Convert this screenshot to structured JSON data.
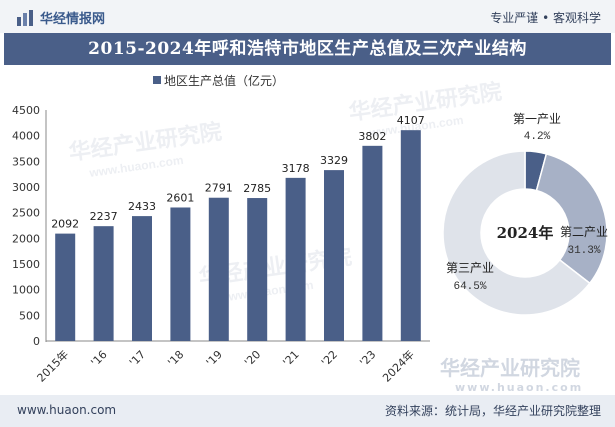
{
  "header": {
    "brand": "华经情报网",
    "slogan": "专业严谨 • 客观科学"
  },
  "title": "2015-2024年呼和浩特市地区生产总值及三次产业结构",
  "footer": {
    "site": "www.huaon.com",
    "source": "资料来源：统计局，华经产业研究院整理"
  },
  "watermark": {
    "text_cn": "华经产业研究院",
    "text_en": "www.huaon.com"
  },
  "colors": {
    "bar": "#4a5f88",
    "title_bg": "#4a5f88",
    "pie_primary": "#4a5f88",
    "pie_secondary": "#a7b1c6",
    "pie_tertiary": "#dfe3ea"
  },
  "chart_data": [
    {
      "type": "bar",
      "legend": "地区生产总值（亿元）",
      "categories": [
        "2015年",
        "'16",
        "'17",
        "'18",
        "'19",
        "'20",
        "'21",
        "'22",
        "'23",
        "2024年"
      ],
      "values": [
        2092,
        2237,
        2433,
        2601,
        2791,
        2785,
        3178,
        3329,
        3802,
        4107
      ],
      "ylim": [
        0,
        4500
      ],
      "yticks": [
        "0",
        "500",
        "1000",
        "1500",
        "2000",
        "2500",
        "3000",
        "3500",
        "4000",
        "4500"
      ],
      "grid": false
    },
    {
      "type": "pie",
      "center_label": "2024年",
      "slices": [
        {
          "name": "第一产业",
          "value": 4.2,
          "label": "4.2%"
        },
        {
          "name": "第二产业",
          "value": 31.3,
          "label": "31.3%"
        },
        {
          "name": "第三产业",
          "value": 64.5,
          "label": "64.5%"
        }
      ]
    }
  ]
}
